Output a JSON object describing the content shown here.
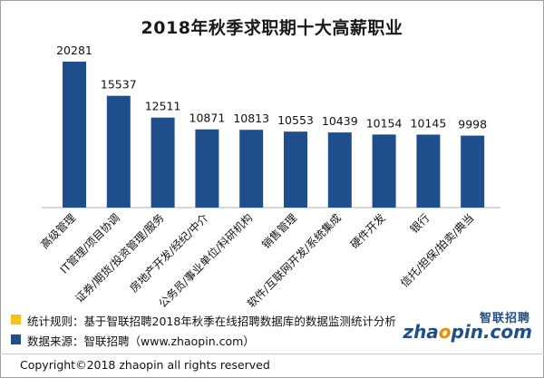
{
  "chart_data": {
    "type": "bar",
    "title": "2018年秋季求职期十大高薪职业",
    "categories": [
      "高级管理",
      "IT管理/项目协调",
      "证券/期货/投资管理/服务",
      "房地产开发/经纪/中介",
      "公务员/事业单位/科研机构",
      "销售管理",
      "软件/互联网开发/系统集成",
      "硬件开发",
      "银行",
      "信托/担保/拍卖/典当"
    ],
    "values": [
      20281,
      15537,
      12511,
      10871,
      10813,
      10553,
      10439,
      10154,
      10145,
      9998
    ],
    "value_labels": [
      "20281",
      "15537",
      "12511",
      "10871",
      "10813",
      "10553",
      "10439",
      "10154",
      "10145",
      "9998"
    ],
    "ylim": [
      0,
      20281
    ],
    "grid": false,
    "bar_color": "#1f4e8c"
  },
  "notes": [
    {
      "label": "统计规则：基于智联招聘2018年秋季在线招聘数据库的数据监测统计分析",
      "color": "#f7c31a"
    },
    {
      "label": "数据来源：智联招聘（www.zhaopin.com）",
      "color": "#1f4e8c"
    }
  ],
  "logo": {
    "cn": "智联招聘",
    "en_a": "zha",
    "en_o": "o",
    "en_b": "pin.com"
  },
  "footer": "Copyright©2018 zhaopin all rights reserved"
}
